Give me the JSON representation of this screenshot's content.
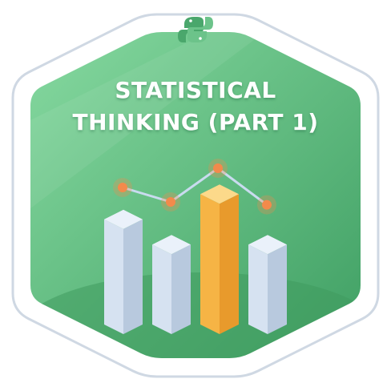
{
  "badge": {
    "title_lines": [
      "STATISTICAL",
      "THINKING (PART 1)"
    ],
    "emblem": "python-logo-icon",
    "illustration": {
      "bars_icon": "bar-chart-icon",
      "trend_icon": "line-trend-icon",
      "bar_levels": [
        0.75,
        0.57,
        0.93,
        0.57
      ],
      "highlighted_bar": 3,
      "trend_levels": [
        0.55,
        0.4,
        0.75,
        0.37
      ]
    },
    "colors": {
      "panel_light": "#7fd49a",
      "panel_dark": "#4aa76c",
      "frame": "#ffffff",
      "frame_outline": "#cfd8e3",
      "bar_face": "#d6e2f1",
      "bar_side": "#b8c9de",
      "bar_top": "#eaf1fa",
      "highlight_face": "#f6b445",
      "highlight_side": "#e89a2c",
      "highlight_top": "#fcd98a",
      "marker": "#f38a4b",
      "trend_line": "#c9dbef"
    }
  }
}
